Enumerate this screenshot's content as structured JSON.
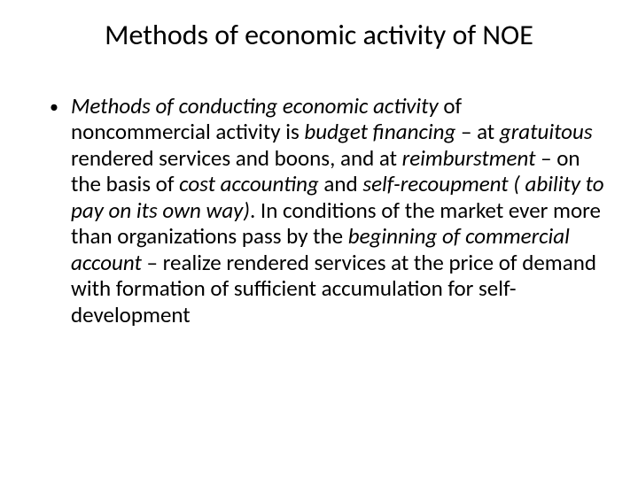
{
  "slide": {
    "title": "Methods of economic activity of NOE",
    "bullet": {
      "runs": [
        {
          "t": "Methods of conducting economic activity",
          "italic": true
        },
        {
          "t": " of noncommercial activity is  ",
          "italic": false
        },
        {
          "t": "budget financing",
          "italic": true
        },
        {
          "t": " – at ",
          "italic": false
        },
        {
          "t": "gratuitous",
          "italic": true
        },
        {
          "t": " rendered services and boons, and at ",
          "italic": false
        },
        {
          "t": "reimburstment",
          "italic": true
        },
        {
          "t": " – on the basis of ",
          "italic": false
        },
        {
          "t": "cost accounting",
          "italic": true
        },
        {
          "t": " and ",
          "italic": false
        },
        {
          "t": "self-recoupment ( ability to pay on its own way)",
          "italic": true
        },
        {
          "t": ". In conditions of the market ever more than organizations pass by the ",
          "italic": false
        },
        {
          "t": "beginning of commercial account",
          "italic": true
        },
        {
          "t": " – realize rendered services at the price of demand with formation of sufficient accumulation for self-development",
          "italic": false
        }
      ]
    }
  },
  "style": {
    "title_fontsize": 32,
    "body_fontsize": 25,
    "text_color": "#000000",
    "background_color": "#ffffff",
    "bullet_char": "•"
  }
}
